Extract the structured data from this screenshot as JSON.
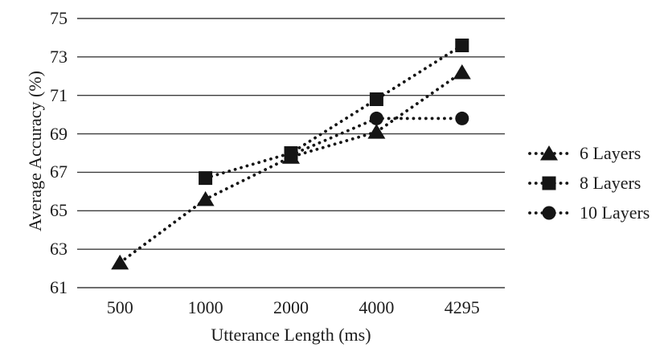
{
  "chart_data": {
    "type": "line",
    "title": "",
    "xlabel": "Utterance Length (ms)",
    "ylabel": "Average Accuracy (%)",
    "categories": [
      "500",
      "1000",
      "2000",
      "4000",
      "4295"
    ],
    "y_ticks": [
      61,
      63,
      65,
      67,
      69,
      71,
      73,
      75
    ],
    "ylim": [
      61,
      75
    ],
    "grid": "horizontal-only",
    "legend_position": "right",
    "line_style": "dotted",
    "ink_color": "#151515",
    "grid_color": "#3d3d3d",
    "series": [
      {
        "name": "6 Layers",
        "marker": "triangle",
        "values": [
          62.3,
          65.6,
          67.8,
          69.1,
          72.2
        ]
      },
      {
        "name": "8 Layers",
        "marker": "square",
        "values": [
          null,
          66.7,
          68.0,
          70.8,
          73.6
        ]
      },
      {
        "name": "10 Layers",
        "marker": "circle",
        "values": [
          null,
          null,
          67.9,
          69.8,
          69.8
        ]
      }
    ]
  }
}
